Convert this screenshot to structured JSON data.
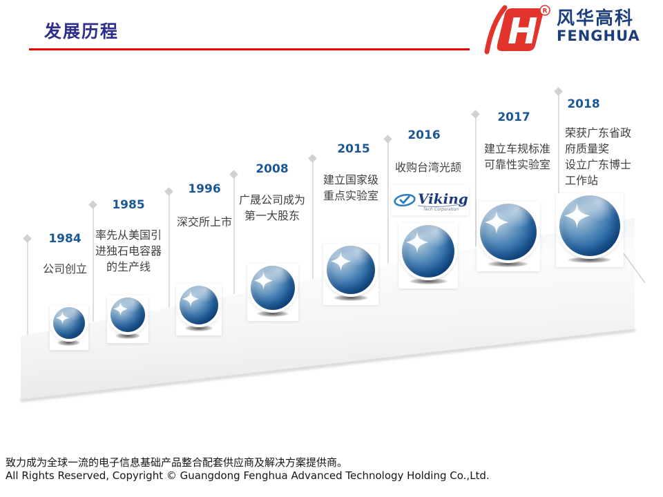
{
  "header": {
    "title": "发展历程",
    "logo": {
      "brand_cn": "风华高科",
      "brand_en": "FENGHUA",
      "registered_mark": "R",
      "monogram": "H"
    }
  },
  "timeline": {
    "milestones": [
      {
        "year": "1984",
        "lines": [
          "公司创立"
        ]
      },
      {
        "year": "1985",
        "lines": [
          "率先从美国引",
          "进独石电容器",
          "的生产线"
        ]
      },
      {
        "year": "1996",
        "lines": [
          "深交所上市"
        ]
      },
      {
        "year": "2008",
        "lines": [
          "广晟公司成为",
          "第一大股东"
        ]
      },
      {
        "year": "2015",
        "lines": [
          "建立国家级",
          "重点实验室"
        ]
      },
      {
        "year": "2016",
        "lines": [
          "收购台湾光颉"
        ],
        "logo": "viking"
      },
      {
        "year": "2017",
        "lines": [
          "建立车规标准",
          "可靠性实验室"
        ]
      },
      {
        "year": "2018",
        "lines": [
          "荣获广东省政",
          "府质量奖",
          "设立广东博士",
          "工作站"
        ],
        "align": "left"
      }
    ],
    "viking_logo": {
      "name": "Viking",
      "subtitle": "Tech Corporation"
    }
  },
  "footer": {
    "line1": "致力成为全球一流的电子信息基础产品整合配套供应商及解决方案提供商。",
    "line2": "All Rights Reserved, Copyright © Guangdong Fenghua  Advanced Technology Holding Co.,Ltd."
  },
  "colors": {
    "title_navy": "#2e2e8c",
    "accent_red": "#ee0000",
    "logo_red": "#e2342b",
    "logo_navy": "#1c3e7c",
    "year_blue": "#1a5796",
    "text_dark": "#3d3f40",
    "sphere_highlight": "#ccdae6",
    "sphere_mid": "#2a6aa8",
    "sphere_dark": "#0a3e7c",
    "stem_gray": "#dcdddd",
    "viking_blue": "#2d7fc1"
  }
}
